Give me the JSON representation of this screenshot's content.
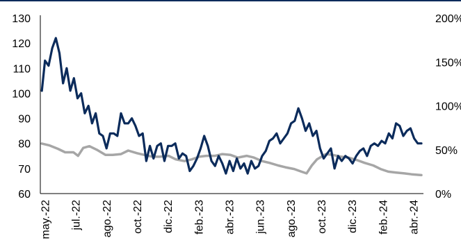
{
  "chart_data": {
    "type": "line",
    "title": "",
    "xlabel": "",
    "ylabel": "",
    "x_tick_labels": [
      "may.-22",
      "jul.-22",
      "ago.-22",
      "oct.-22",
      "dic.-22",
      "feb.-23",
      "abr.-23",
      "jun.-23",
      "ago.-23",
      "oct.-23",
      "dic.-23",
      "feb.-24",
      "abr.-24"
    ],
    "y_left": {
      "ticks": [
        "60",
        "70",
        "80",
        "90",
        "100",
        "110",
        "120",
        "130"
      ],
      "ylim": [
        60,
        130
      ]
    },
    "y_right": {
      "ticks": [
        "0%",
        "50%",
        "100%",
        "150%",
        "200%"
      ],
      "ylim": [
        0,
        200
      ],
      "unit": "%"
    },
    "legend": "none",
    "grid": false,
    "series": [
      {
        "axis": "left",
        "color": "#0b2b5b",
        "points": [
          [
            "2022-05-01",
            101
          ],
          [
            "2022-05-07",
            113
          ],
          [
            "2022-05-14",
            111
          ],
          [
            "2022-05-21",
            118
          ],
          [
            "2022-05-28",
            122
          ],
          [
            "2022-06-04",
            116
          ],
          [
            "2022-06-11",
            104
          ],
          [
            "2022-06-18",
            110
          ],
          [
            "2022-06-25",
            101
          ],
          [
            "2022-07-02",
            106
          ],
          [
            "2022-07-09",
            98
          ],
          [
            "2022-07-16",
            100
          ],
          [
            "2022-07-23",
            92
          ],
          [
            "2022-07-30",
            95
          ],
          [
            "2022-08-06",
            88
          ],
          [
            "2022-08-13",
            92
          ],
          [
            "2022-08-20",
            84
          ],
          [
            "2022-08-27",
            83
          ],
          [
            "2022-09-03",
            78
          ],
          [
            "2022-09-10",
            84
          ],
          [
            "2022-09-17",
            84
          ],
          [
            "2022-09-24",
            83
          ],
          [
            "2022-10-01",
            92
          ],
          [
            "2022-10-08",
            88
          ],
          [
            "2022-10-15",
            88
          ],
          [
            "2022-10-22",
            90
          ],
          [
            "2022-10-29",
            87
          ],
          [
            "2022-11-05",
            83
          ],
          [
            "2022-11-12",
            84
          ],
          [
            "2022-11-19",
            73
          ],
          [
            "2022-11-26",
            79
          ],
          [
            "2022-12-03",
            74
          ],
          [
            "2022-12-10",
            79
          ],
          [
            "2022-12-17",
            80
          ],
          [
            "2022-12-24",
            73
          ],
          [
            "2022-12-31",
            79
          ],
          [
            "2023-01-07",
            79
          ],
          [
            "2023-01-14",
            80
          ],
          [
            "2023-01-21",
            74
          ],
          [
            "2023-01-28",
            76
          ],
          [
            "2023-02-04",
            75
          ],
          [
            "2023-02-11",
            69
          ],
          [
            "2023-02-18",
            71
          ],
          [
            "2023-02-25",
            74
          ],
          [
            "2023-03-04",
            78
          ],
          [
            "2023-03-11",
            83
          ],
          [
            "2023-03-18",
            79
          ],
          [
            "2023-03-25",
            73
          ],
          [
            "2023-04-01",
            71
          ],
          [
            "2023-04-08",
            75
          ],
          [
            "2023-04-15",
            72
          ],
          [
            "2023-04-22",
            68
          ],
          [
            "2023-04-29",
            73
          ],
          [
            "2023-05-06",
            69
          ],
          [
            "2023-05-13",
            74
          ],
          [
            "2023-05-20",
            70
          ],
          [
            "2023-05-27",
            72
          ],
          [
            "2023-06-03",
            68
          ],
          [
            "2023-06-10",
            73
          ],
          [
            "2023-06-17",
            70
          ],
          [
            "2023-06-24",
            71
          ],
          [
            "2023-07-01",
            75
          ],
          [
            "2023-07-08",
            77
          ],
          [
            "2023-07-15",
            81
          ],
          [
            "2023-07-22",
            82
          ],
          [
            "2023-07-29",
            84
          ],
          [
            "2023-08-05",
            80
          ],
          [
            "2023-08-12",
            82
          ],
          [
            "2023-08-19",
            84
          ],
          [
            "2023-08-26",
            88
          ],
          [
            "2023-09-02",
            89
          ],
          [
            "2023-09-09",
            94
          ],
          [
            "2023-09-16",
            90
          ],
          [
            "2023-09-23",
            85
          ],
          [
            "2023-09-30",
            88
          ],
          [
            "2023-10-07",
            83
          ],
          [
            "2023-10-14",
            85
          ],
          [
            "2023-10-21",
            78
          ],
          [
            "2023-10-28",
            74
          ],
          [
            "2023-11-04",
            76
          ],
          [
            "2023-11-11",
            78
          ],
          [
            "2023-11-18",
            70
          ],
          [
            "2023-11-25",
            75
          ],
          [
            "2023-12-02",
            73
          ],
          [
            "2023-12-09",
            75
          ],
          [
            "2023-12-16",
            74
          ],
          [
            "2023-12-23",
            72
          ],
          [
            "2023-12-30",
            75
          ],
          [
            "2024-01-06",
            77
          ],
          [
            "2024-01-13",
            78
          ],
          [
            "2024-01-20",
            75
          ],
          [
            "2024-01-27",
            79
          ],
          [
            "2024-02-03",
            80
          ],
          [
            "2024-02-10",
            79
          ],
          [
            "2024-02-17",
            81
          ],
          [
            "2024-02-24",
            80
          ],
          [
            "2024-03-02",
            84
          ],
          [
            "2024-03-09",
            82
          ],
          [
            "2024-03-16",
            88
          ],
          [
            "2024-03-23",
            87
          ],
          [
            "2024-03-30",
            83
          ],
          [
            "2024-04-06",
            85
          ],
          [
            "2024-04-13",
            86
          ],
          [
            "2024-04-20",
            82
          ],
          [
            "2024-04-27",
            80
          ],
          [
            "2024-05-04",
            80
          ]
        ]
      },
      {
        "axis": "right",
        "color": "#a6a6a6",
        "points": [
          [
            "2022-05-01",
            57
          ],
          [
            "2022-05-15",
            55
          ],
          [
            "2022-06-01",
            51
          ],
          [
            "2022-06-15",
            47
          ],
          [
            "2022-07-01",
            47
          ],
          [
            "2022-07-10",
            43
          ],
          [
            "2022-07-20",
            52
          ],
          [
            "2022-08-01",
            54
          ],
          [
            "2022-08-15",
            50
          ],
          [
            "2022-09-01",
            44
          ],
          [
            "2022-09-15",
            44
          ],
          [
            "2022-10-01",
            45
          ],
          [
            "2022-10-15",
            49
          ],
          [
            "2022-11-01",
            46
          ],
          [
            "2022-11-15",
            44
          ],
          [
            "2022-12-01",
            42
          ],
          [
            "2022-12-15",
            42
          ],
          [
            "2023-01-01",
            43
          ],
          [
            "2023-01-15",
            39
          ],
          [
            "2023-02-01",
            37
          ],
          [
            "2023-02-15",
            39
          ],
          [
            "2023-03-01",
            42
          ],
          [
            "2023-03-15",
            43
          ],
          [
            "2023-04-01",
            43
          ],
          [
            "2023-04-15",
            45
          ],
          [
            "2023-05-01",
            44
          ],
          [
            "2023-05-15",
            41
          ],
          [
            "2023-06-01",
            43
          ],
          [
            "2023-06-15",
            41
          ],
          [
            "2023-07-01",
            37
          ],
          [
            "2023-07-15",
            35
          ],
          [
            "2023-08-01",
            32
          ],
          [
            "2023-08-15",
            30
          ],
          [
            "2023-09-01",
            28
          ],
          [
            "2023-09-15",
            25
          ],
          [
            "2023-09-25",
            23
          ],
          [
            "2023-10-05",
            32
          ],
          [
            "2023-10-15",
            39
          ],
          [
            "2023-11-01",
            45
          ],
          [
            "2023-11-15",
            44
          ],
          [
            "2023-12-01",
            42
          ],
          [
            "2023-12-15",
            41
          ],
          [
            "2024-01-01",
            38
          ],
          [
            "2024-01-15",
            35
          ],
          [
            "2024-02-01",
            32
          ],
          [
            "2024-02-15",
            28
          ],
          [
            "2024-03-01",
            25
          ],
          [
            "2024-03-15",
            24
          ],
          [
            "2024-04-01",
            23
          ],
          [
            "2024-04-15",
            22
          ],
          [
            "2024-05-04",
            21
          ]
        ]
      }
    ]
  }
}
